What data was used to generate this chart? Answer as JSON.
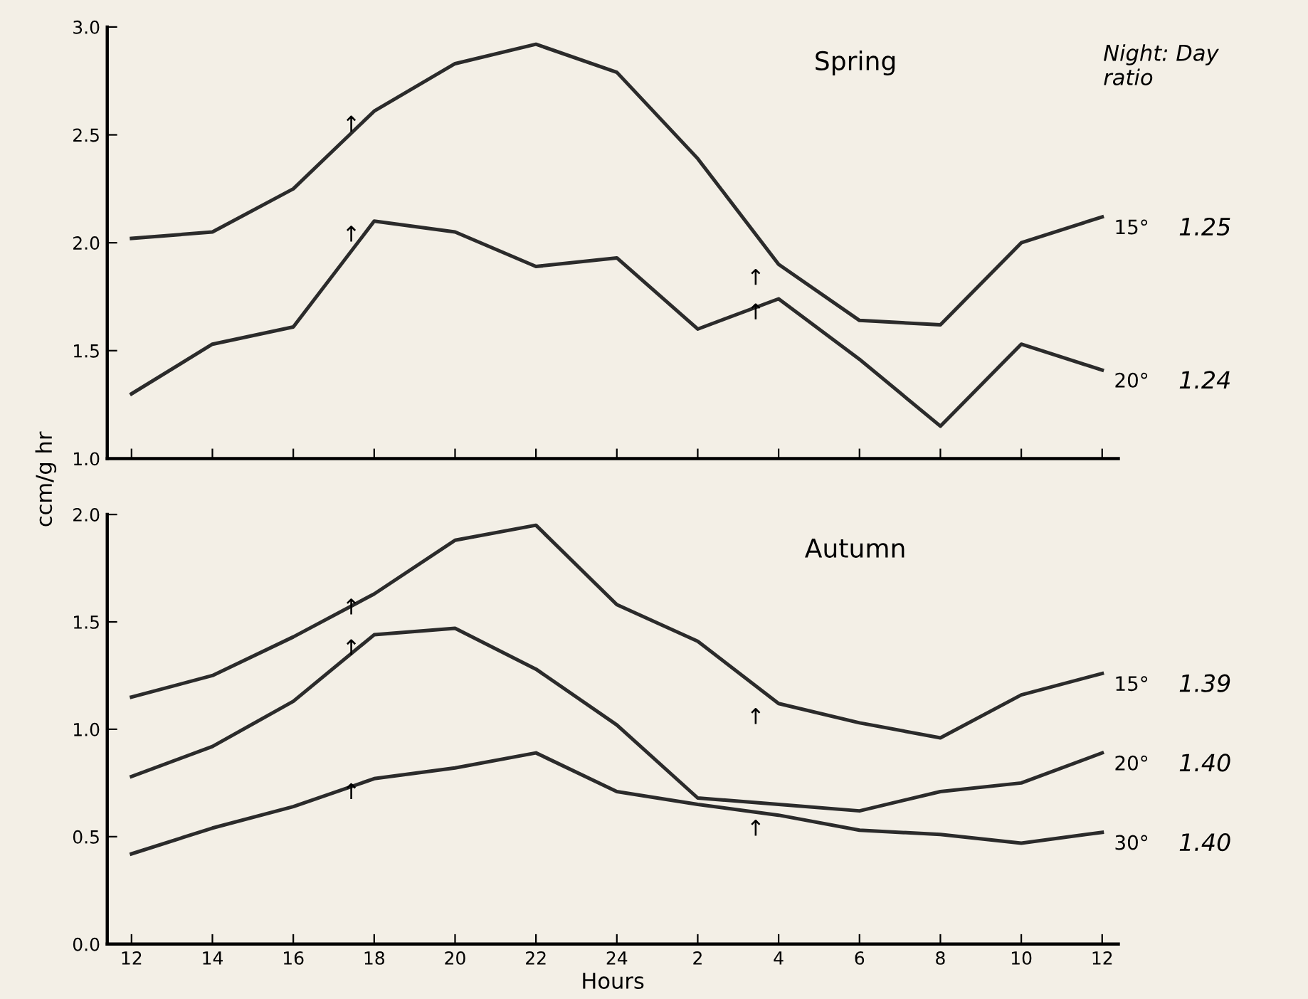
{
  "chart_data": [
    {
      "type": "line",
      "title": "Spring",
      "ylabel": "ccm/g hr",
      "categories": [
        "12",
        "14",
        "16",
        "18",
        "20",
        "22",
        "24",
        "2",
        "4",
        "6",
        "8",
        "10",
        "12"
      ],
      "tick_labels": "y",
      "ylim": [
        1.0,
        3.0
      ],
      "yticks": [
        {
          "value": 1.0,
          "label": "1.0"
        },
        {
          "value": 1.5,
          "label": "1.5"
        },
        {
          "value": 2.0,
          "label": "2.0"
        },
        {
          "value": 2.5,
          "label": "2.5"
        },
        {
          "value": 3.0,
          "label": "3.0"
        }
      ],
      "grid": false,
      "legend": false,
      "marker": "none",
      "line_style": "solid",
      "series": [
        {
          "name": "15°",
          "color": "#2b2b2b",
          "values": [
            2.02,
            2.05,
            2.25,
            2.61,
            2.83,
            2.92,
            2.79,
            2.39,
            1.9,
            1.64,
            1.62,
            2.0,
            2.12
          ]
        },
        {
          "name": "20°",
          "color": "#2b2b2b",
          "values": [
            1.3,
            1.53,
            1.61,
            2.1,
            2.05,
            1.89,
            1.93,
            1.6,
            1.74,
            1.46,
            1.15,
            1.53,
            1.41
          ]
        }
      ],
      "annotations": [
        "Night: Day\nratio",
        "1.25",
        "1.24",
        {
          "text": "↑",
          "x": "18",
          "y": 2.61
        },
        {
          "text": "↑",
          "x": "18",
          "y": 2.1
        },
        {
          "text": "↑",
          "x": "4",
          "y": 1.9
        },
        {
          "text": "↑",
          "x": "4",
          "y": 1.74
        }
      ]
    },
    {
      "type": "line",
      "title": "Autumn",
      "xlabel": "Hours",
      "categories": [
        "12",
        "14",
        "16",
        "18",
        "20",
        "22",
        "24",
        "2",
        "4",
        "6",
        "8",
        "10",
        "12"
      ],
      "ylim": [
        0.0,
        2.0
      ],
      "yticks": [
        {
          "value": 0.0,
          "label": "0.0"
        },
        {
          "value": 0.5,
          "label": "0.5"
        },
        {
          "value": 1.0,
          "label": "1.0"
        },
        {
          "value": 1.5,
          "label": "1.5"
        },
        {
          "value": 2.0,
          "label": "2.0"
        }
      ],
      "grid": false,
      "legend": false,
      "marker": "none",
      "line_style": "solid",
      "series": [
        {
          "name": "15°",
          "color": "#2b2b2b",
          "values": [
            1.15,
            1.25,
            1.43,
            1.63,
            1.88,
            1.95,
            1.58,
            1.41,
            1.12,
            1.03,
            0.96,
            1.16,
            1.26
          ]
        },
        {
          "name": "20°",
          "color": "#2b2b2b",
          "values": [
            0.78,
            0.92,
            1.13,
            1.44,
            1.47,
            1.28,
            1.02,
            0.68,
            0.65,
            0.62,
            0.71,
            0.75,
            0.89
          ]
        },
        {
          "name": "30°",
          "color": "#2b2b2b",
          "values": [
            0.42,
            0.54,
            0.64,
            0.77,
            0.82,
            0.89,
            0.71,
            0.65,
            0.6,
            0.53,
            0.51,
            0.47,
            0.52
          ]
        }
      ],
      "annotations": [
        "1.39",
        "1.40",
        "1.40",
        {
          "text": "↑",
          "x": "18",
          "y": 1.63
        },
        {
          "text": "↑",
          "x": "18",
          "y": 1.44
        },
        {
          "text": "↑",
          "x": "18",
          "y": 0.77
        },
        {
          "text": "↑",
          "x": "4",
          "y": 1.12
        },
        {
          "text": "↑",
          "x": "4",
          "y": 0.6
        }
      ]
    }
  ]
}
